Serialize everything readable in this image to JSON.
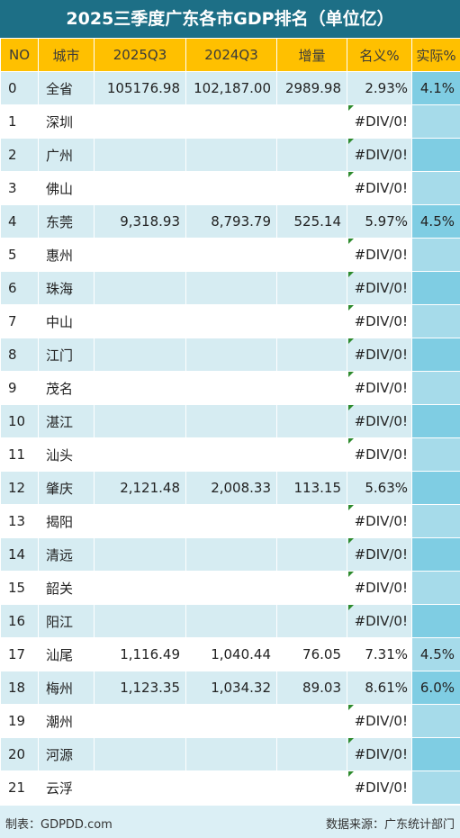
{
  "title": "2025三季度广东各市GDP排名（单位亿）",
  "headers": [
    "NO",
    "城市",
    "2025Q3",
    "2024Q3",
    "增量",
    "名义%",
    "实际%"
  ],
  "rows": [
    {
      "no": "0",
      "city": "全省",
      "q2025": "105176.98",
      "q2024": "102,187.00",
      "inc": "2989.98",
      "nominal": "2.93%",
      "real": "4.1%"
    },
    {
      "no": "1",
      "city": "深圳",
      "q2025": "",
      "q2024": "",
      "inc": "",
      "nominal": "#DIV/0!",
      "real": ""
    },
    {
      "no": "2",
      "city": "广州",
      "q2025": "",
      "q2024": "",
      "inc": "",
      "nominal": "#DIV/0!",
      "real": ""
    },
    {
      "no": "3",
      "city": "佛山",
      "q2025": "",
      "q2024": "",
      "inc": "",
      "nominal": "#DIV/0!",
      "real": ""
    },
    {
      "no": "4",
      "city": "东莞",
      "q2025": "9,318.93",
      "q2024": "8,793.79",
      "inc": "525.14",
      "nominal": "5.97%",
      "real": "4.5%"
    },
    {
      "no": "5",
      "city": "惠州",
      "q2025": "",
      "q2024": "",
      "inc": "",
      "nominal": "#DIV/0!",
      "real": ""
    },
    {
      "no": "6",
      "city": "珠海",
      "q2025": "",
      "q2024": "",
      "inc": "",
      "nominal": "#DIV/0!",
      "real": ""
    },
    {
      "no": "7",
      "city": "中山",
      "q2025": "",
      "q2024": "",
      "inc": "",
      "nominal": "#DIV/0!",
      "real": ""
    },
    {
      "no": "8",
      "city": "江门",
      "q2025": "",
      "q2024": "",
      "inc": "",
      "nominal": "#DIV/0!",
      "real": ""
    },
    {
      "no": "9",
      "city": "茂名",
      "q2025": "",
      "q2024": "",
      "inc": "",
      "nominal": "#DIV/0!",
      "real": ""
    },
    {
      "no": "10",
      "city": "湛江",
      "q2025": "",
      "q2024": "",
      "inc": "",
      "nominal": "#DIV/0!",
      "real": ""
    },
    {
      "no": "11",
      "city": "汕头",
      "q2025": "",
      "q2024": "",
      "inc": "",
      "nominal": "#DIV/0!",
      "real": ""
    },
    {
      "no": "12",
      "city": "肇庆",
      "q2025": "2,121.48",
      "q2024": "2,008.33",
      "inc": "113.15",
      "nominal": "5.63%",
      "real": ""
    },
    {
      "no": "13",
      "city": "揭阳",
      "q2025": "",
      "q2024": "",
      "inc": "",
      "nominal": "#DIV/0!",
      "real": ""
    },
    {
      "no": "14",
      "city": "清远",
      "q2025": "",
      "q2024": "",
      "inc": "",
      "nominal": "#DIV/0!",
      "real": ""
    },
    {
      "no": "15",
      "city": "韶关",
      "q2025": "",
      "q2024": "",
      "inc": "",
      "nominal": "#DIV/0!",
      "real": ""
    },
    {
      "no": "16",
      "city": "阳江",
      "q2025": "",
      "q2024": "",
      "inc": "",
      "nominal": "#DIV/0!",
      "real": ""
    },
    {
      "no": "17",
      "city": "汕尾",
      "q2025": "1,116.49",
      "q2024": "1,040.44",
      "inc": "76.05",
      "nominal": "7.31%",
      "real": "4.5%"
    },
    {
      "no": "18",
      "city": "梅州",
      "q2025": "1,123.35",
      "q2024": "1,034.32",
      "inc": "89.03",
      "nominal": "8.61%",
      "real": "6.0%"
    },
    {
      "no": "19",
      "city": "潮州",
      "q2025": "",
      "q2024": "",
      "inc": "",
      "nominal": "#DIV/0!",
      "real": ""
    },
    {
      "no": "20",
      "city": "河源",
      "q2025": "",
      "q2024": "",
      "inc": "",
      "nominal": "#DIV/0!",
      "real": ""
    },
    {
      "no": "21",
      "city": "云浮",
      "q2025": "",
      "q2024": "",
      "inc": "",
      "nominal": "#DIV/0!",
      "real": ""
    }
  ],
  "footer": {
    "left": "制表：GDPDD.com",
    "right": "数据来源：广东统计部门"
  },
  "colors": {
    "title_bg": "#1d6f86",
    "header_bg": "#ffc000",
    "row_alt_bg": "#d6ecf2",
    "real_col_bg": "#7fcde3",
    "footer_bg": "#dbeff5",
    "error_marker": "#2e8b2e"
  }
}
